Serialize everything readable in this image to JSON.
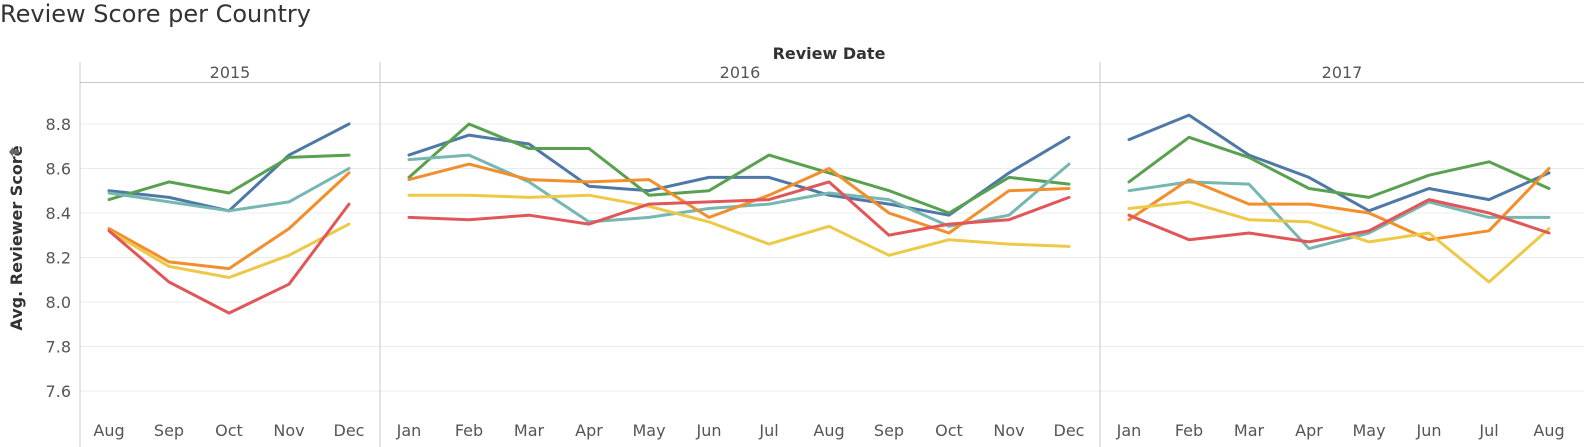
{
  "title": "Review Score per Country",
  "chart_data": {
    "type": "line",
    "title": "Review Score per Country",
    "xlabel": "Review Date",
    "ylabel": "Avg. Reviewer Score",
    "ylim": [
      7.5,
      9.0
    ],
    "yticks": [
      "7.6",
      "7.8",
      "8.0",
      "8.2",
      "8.4",
      "8.6",
      "8.8"
    ],
    "grid": true,
    "panels": [
      {
        "year": "2015",
        "months": [
          "Aug",
          "Sep",
          "Oct",
          "Nov",
          "Dec"
        ]
      },
      {
        "year": "2016",
        "months": [
          "Jan",
          "Feb",
          "Mar",
          "Apr",
          "May",
          "Jun",
          "Jul",
          "Aug",
          "Sep",
          "Oct",
          "Nov",
          "Dec"
        ]
      },
      {
        "year": "2017",
        "months": [
          "Jan",
          "Feb",
          "Mar",
          "Apr",
          "May",
          "Jun",
          "Jul",
          "Aug"
        ]
      }
    ],
    "series": [
      {
        "color": "#4e79a7",
        "values": [
          [
            8.5,
            8.47,
            8.41,
            8.66,
            8.8
          ],
          [
            8.66,
            8.75,
            8.71,
            8.52,
            8.5,
            8.56,
            8.56,
            8.48,
            8.44,
            8.39,
            8.58,
            8.74
          ],
          [
            8.73,
            8.84,
            8.66,
            8.56,
            8.41,
            8.51,
            8.46,
            8.58
          ]
        ]
      },
      {
        "color": "#59a14f",
        "values": [
          [
            8.46,
            8.54,
            8.49,
            8.65,
            8.66
          ],
          [
            8.56,
            8.8,
            8.69,
            8.69,
            8.48,
            8.5,
            8.66,
            8.58,
            8.5,
            8.4,
            8.56,
            8.53
          ],
          [
            8.54,
            8.74,
            8.65,
            8.51,
            8.47,
            8.57,
            8.63,
            8.51
          ]
        ]
      },
      {
        "color": "#76b7b2",
        "values": [
          [
            8.49,
            8.45,
            8.41,
            8.45,
            8.6
          ],
          [
            8.64,
            8.66,
            8.54,
            8.36,
            8.38,
            8.42,
            8.44,
            8.49,
            8.46,
            8.34,
            8.39,
            8.62
          ],
          [
            8.5,
            8.54,
            8.53,
            8.24,
            8.31,
            8.45,
            8.38,
            8.38
          ]
        ]
      },
      {
        "color": "#f28e2b",
        "values": [
          [
            8.33,
            8.18,
            8.15,
            8.33,
            8.58
          ],
          [
            8.55,
            8.62,
            8.55,
            8.54,
            8.55,
            8.38,
            8.48,
            8.6,
            8.4,
            8.31,
            8.5,
            8.51
          ],
          [
            8.37,
            8.55,
            8.44,
            8.44,
            8.4,
            8.28,
            8.32,
            8.6
          ]
        ]
      },
      {
        "color": "#edc948",
        "values": [
          [
            8.32,
            8.16,
            8.11,
            8.21,
            8.35
          ],
          [
            8.48,
            8.48,
            8.47,
            8.48,
            8.43,
            8.36,
            8.26,
            8.34,
            8.21,
            8.28,
            8.26,
            8.25
          ],
          [
            8.42,
            8.45,
            8.37,
            8.36,
            8.27,
            8.31,
            8.09,
            8.33
          ]
        ]
      },
      {
        "color": "#e15759",
        "values": [
          [
            8.32,
            8.09,
            7.95,
            8.08,
            8.44
          ],
          [
            8.38,
            8.37,
            8.39,
            8.35,
            8.44,
            8.45,
            8.46,
            8.54,
            8.3,
            8.35,
            8.37,
            8.47
          ],
          [
            8.39,
            8.28,
            8.31,
            8.27,
            8.32,
            8.46,
            8.4,
            8.31
          ]
        ]
      }
    ]
  }
}
